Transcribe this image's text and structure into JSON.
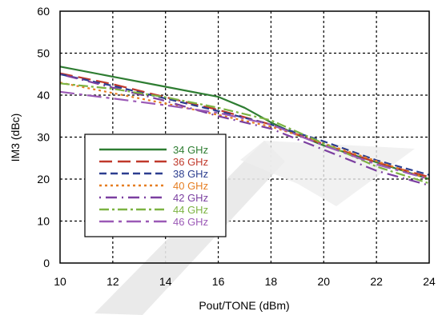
{
  "chart_data": {
    "type": "line",
    "xlabel": "Pout/TONE (dBm)",
    "ylabel": "IM3 (dBc)",
    "xlim": [
      10,
      24
    ],
    "ylim": [
      0,
      60
    ],
    "xticks": [
      "10",
      "12",
      "14",
      "16",
      "18",
      "20",
      "22",
      "24"
    ],
    "yticks": [
      "0",
      "10",
      "20",
      "30",
      "40",
      "50",
      "60"
    ],
    "grid": true,
    "legend_position": "left-center",
    "series": [
      {
        "name": "34 GHz",
        "color": "#2e7d32",
        "dash": "solid",
        "x": [
          10,
          12,
          14,
          16,
          17,
          18,
          19,
          20,
          22,
          24
        ],
        "y": [
          46.8,
          44.4,
          42,
          39.6,
          37,
          33.5,
          30.5,
          28,
          24,
          20
        ]
      },
      {
        "name": "36 GHz",
        "color": "#c0392b",
        "dash": "longdash",
        "x": [
          10,
          12,
          14,
          16,
          18,
          20,
          22,
          24
        ],
        "y": [
          45.2,
          42.6,
          39.5,
          36.5,
          33,
          28.3,
          24,
          20.5
        ]
      },
      {
        "name": "38 GHz",
        "color": "#2c3e8f",
        "dash": "dash",
        "x": [
          10,
          12,
          14,
          16,
          18,
          20,
          22,
          24
        ],
        "y": [
          45,
          42.2,
          39.2,
          36.2,
          33,
          29,
          24.5,
          21
        ]
      },
      {
        "name": "40 GHz",
        "color": "#e67e22",
        "dash": "dot",
        "x": [
          10,
          12,
          14,
          16,
          18,
          20,
          22,
          24
        ],
        "y": [
          43,
          40.5,
          38,
          35.3,
          32.5,
          28.5,
          24.3,
          20
        ]
      },
      {
        "name": "42 GHz",
        "color": "#7b3fa0",
        "dash": "dashdot",
        "x": [
          10,
          12,
          14,
          16,
          18,
          20,
          22,
          24
        ],
        "y": [
          45,
          41.8,
          38.6,
          35,
          32,
          27,
          22,
          18.5
        ]
      },
      {
        "name": "44 GHz",
        "color": "#7cb342",
        "dash": "dashdotlong",
        "x": [
          10,
          12,
          14,
          16,
          18,
          20,
          22,
          24
        ],
        "y": [
          42.8,
          41.5,
          39.5,
          37,
          34,
          28.5,
          23,
          19
        ]
      },
      {
        "name": "46 GHz",
        "color": "#9b59b6",
        "dash": "longdashdot",
        "x": [
          10,
          12,
          14,
          16,
          18,
          20,
          22,
          24
        ],
        "y": [
          40.8,
          39.2,
          37.6,
          35.8,
          33,
          28,
          23.5,
          20
        ]
      }
    ]
  }
}
